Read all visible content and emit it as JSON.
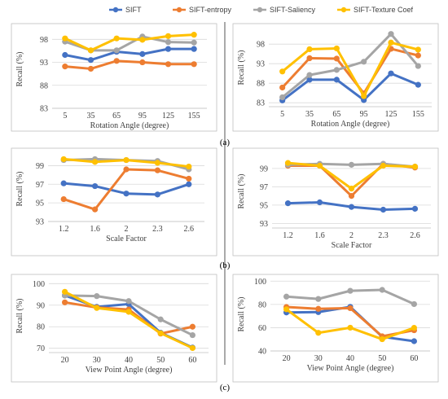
{
  "legend": [
    {
      "name": "SIFT",
      "color": "#4472C4"
    },
    {
      "name": "SIFT-entropy",
      "color": "#ED7D31"
    },
    {
      "name": "SIFT-Saliency",
      "color": "#A5A5A5"
    },
    {
      "name": "SIFT-Texture Coef",
      "color": "#FFC000"
    }
  ],
  "panel_labels": [
    "(a)",
    "(b)",
    "(c)"
  ],
  "chart_data": [
    {
      "type": "line",
      "xlabel": "Rotation Angle (degree)",
      "ylabel": "Recall (%)",
      "categories": [
        "5",
        "35",
        "65",
        "95",
        "125",
        "155"
      ],
      "ylim": [
        83,
        100
      ],
      "yticks": [
        83,
        88,
        93,
        98
      ],
      "series": [
        {
          "name": "SIFT",
          "values": [
            94.6,
            93.5,
            95.3,
            94.8,
            95.9,
            95.9
          ]
        },
        {
          "name": "SIFT-entropy",
          "values": [
            92.1,
            91.6,
            93.3,
            93.0,
            92.6,
            92.6
          ]
        },
        {
          "name": "SIFT-Saliency",
          "values": [
            97.5,
            95.6,
            95.6,
            98.6,
            97.4,
            97.3
          ]
        },
        {
          "name": "SIFT-Texture Coef",
          "values": [
            98.2,
            95.6,
            98.2,
            97.9,
            98.7,
            99.0
          ]
        }
      ]
    },
    {
      "type": "line",
      "xlabel": "Rotation Angle (degree)",
      "ylabel": "Recall (%)",
      "categories": [
        "5",
        "35",
        "65",
        "95",
        "125",
        "155"
      ],
      "ylim": [
        82,
        102
      ],
      "yticks": [
        83,
        88,
        93,
        98
      ],
      "series": [
        {
          "name": "SIFT",
          "values": [
            83.6,
            88.9,
            88.9,
            83.7,
            90.5,
            87.6
          ]
        },
        {
          "name": "SIFT-entropy",
          "values": [
            86.9,
            94.4,
            94.3,
            85.4,
            96.8,
            95.1
          ]
        },
        {
          "name": "SIFT-Saliency",
          "values": [
            84.4,
            90.1,
            91.4,
            93.5,
            100.6,
            92.4
          ]
        },
        {
          "name": "SIFT-Texture Coef",
          "values": [
            91.0,
            96.7,
            96.9,
            84.7,
            98.4,
            96.6
          ]
        }
      ]
    },
    {
      "type": "line",
      "xlabel": "Scale Factor",
      "ylabel": "Recall (%)",
      "categories": [
        "1.2",
        "1.6",
        "2",
        "2.3",
        "2.6"
      ],
      "ylim": [
        93,
        100
      ],
      "yticks": [
        93,
        95,
        97,
        99
      ],
      "series": [
        {
          "name": "SIFT",
          "values": [
            97.1,
            96.8,
            96.0,
            95.9,
            97.0
          ]
        },
        {
          "name": "SIFT-entropy",
          "values": [
            95.4,
            94.3,
            98.6,
            98.5,
            97.6
          ]
        },
        {
          "name": "SIFT-Saliency",
          "values": [
            99.6,
            99.7,
            99.6,
            99.5,
            98.6
          ]
        },
        {
          "name": "SIFT-Texture Coef",
          "values": [
            99.7,
            99.4,
            99.6,
            99.3,
            98.9
          ]
        }
      ]
    },
    {
      "type": "line",
      "xlabel": "Scale Factor",
      "ylabel": "Recall (%)",
      "categories": [
        "1.2",
        "1.6",
        "2",
        "2.3",
        "2.6"
      ],
      "ylim": [
        92.5,
        100.5
      ],
      "yticks": [
        93,
        95,
        97,
        99
      ],
      "series": [
        {
          "name": "SIFT",
          "values": [
            95.2,
            95.3,
            94.8,
            94.5,
            94.6
          ]
        },
        {
          "name": "SIFT-entropy",
          "values": [
            99.3,
            99.3,
            96.0,
            99.5,
            99.1
          ]
        },
        {
          "name": "SIFT-Saliency",
          "values": [
            99.4,
            99.5,
            99.4,
            99.5,
            99.2
          ]
        },
        {
          "name": "SIFT-Texture Coef",
          "values": [
            99.6,
            99.3,
            96.8,
            99.3,
            99.2
          ]
        }
      ]
    },
    {
      "type": "line",
      "xlabel": "View Point Angle (degree)",
      "ylabel": "Recall (%)",
      "categories": [
        "20",
        "30",
        "40",
        "50",
        "60"
      ],
      "ylim": [
        68,
        102
      ],
      "yticks": [
        70,
        80,
        90,
        100
      ],
      "series": [
        {
          "name": "SIFT",
          "values": [
            94.5,
            89.2,
            90.5,
            77.2,
            70.3
          ]
        },
        {
          "name": "SIFT-entropy",
          "values": [
            91.3,
            88.9,
            88.0,
            76.8,
            80.0
          ]
        },
        {
          "name": "SIFT-Saliency",
          "values": [
            94.5,
            94.2,
            91.9,
            83.4,
            76.1
          ]
        },
        {
          "name": "SIFT-Texture Coef",
          "values": [
            96.2,
            88.7,
            86.9,
            77.0,
            70.1
          ]
        }
      ]
    },
    {
      "type": "line",
      "xlabel": "View Point Angle (degree)",
      "ylabel": "Recall (%)",
      "categories": [
        "20",
        "30",
        "40",
        "50",
        "60"
      ],
      "ylim": [
        40,
        103
      ],
      "yticks": [
        40,
        60,
        80,
        100
      ],
      "series": [
        {
          "name": "SIFT",
          "values": [
            73.1,
            73.4,
            77.9,
            52.2,
            48.4
          ]
        },
        {
          "name": "SIFT-entropy",
          "values": [
            77.8,
            76.2,
            76.8,
            52.6,
            57.8
          ]
        },
        {
          "name": "SIFT-Saliency",
          "values": [
            86.7,
            84.7,
            91.7,
            92.5,
            80.3
          ]
        },
        {
          "name": "SIFT-Texture Coef",
          "values": [
            75.8,
            55.6,
            60.0,
            50.1,
            59.9
          ]
        }
      ]
    }
  ]
}
